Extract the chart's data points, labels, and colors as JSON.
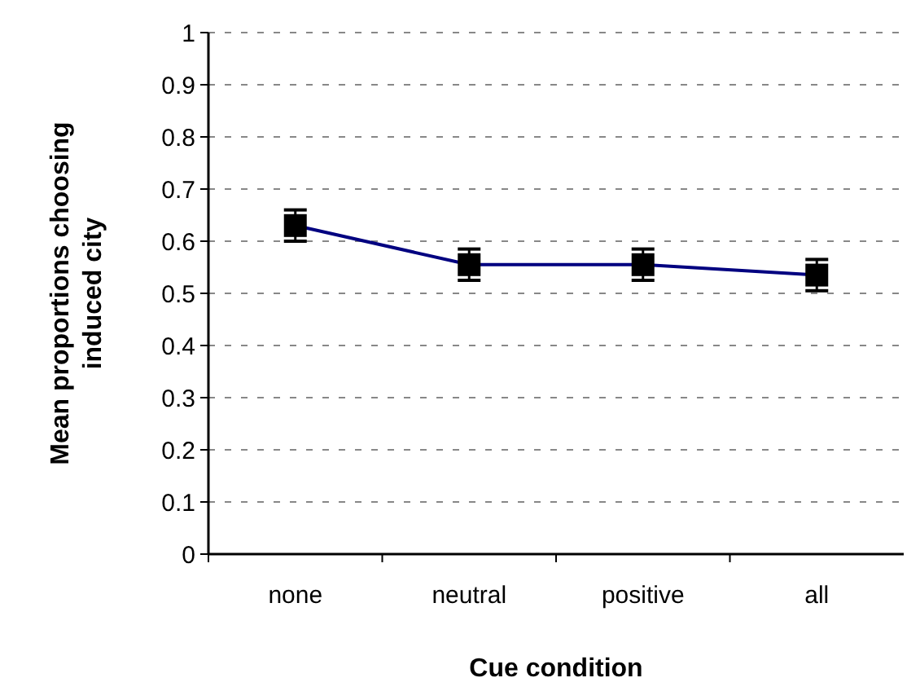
{
  "chart_data": {
    "type": "line",
    "xlabel": "Cue condition",
    "ylabel": "Mean proportions choosing induced city",
    "categories": [
      "none",
      "neutral",
      "positive",
      "all"
    ],
    "series": [
      {
        "color": "#000080",
        "values": [
          0.63,
          0.555,
          0.555,
          0.535
        ],
        "errors": [
          0.03,
          0.03,
          0.03,
          0.03
        ]
      }
    ],
    "ylim": [
      0,
      1
    ],
    "yticks": [
      0,
      0.1,
      0.2,
      0.3,
      0.4,
      0.5,
      0.6,
      0.7,
      0.8,
      0.9,
      1
    ],
    "grid": "y",
    "marker": "square",
    "line_style": "solid"
  }
}
